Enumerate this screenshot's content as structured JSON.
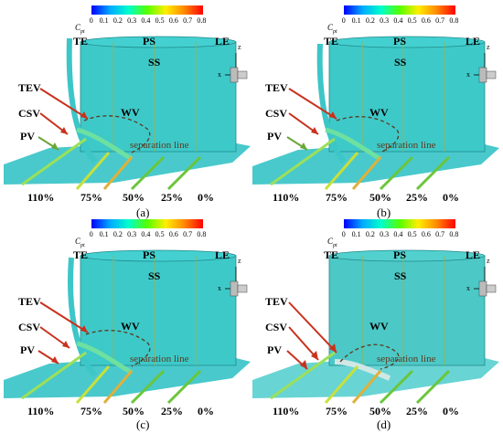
{
  "colorbar": {
    "symbol": "C",
    "symbol_sub": "pt",
    "ticks": [
      "0",
      "0.1",
      "0.2",
      "0.3",
      "0.4",
      "0.5",
      "0.6",
      "0.7",
      "0.8"
    ],
    "colors": [
      "#0000ff",
      "#00aaff",
      "#00ffcc",
      "#55ff00",
      "#ffee00",
      "#ff8800",
      "#ff0000"
    ]
  },
  "labels": {
    "te": "TE",
    "ps": "PS",
    "le": "LE",
    "ss": "SS",
    "wv": "WV",
    "tev": "TEV",
    "csv": "CSV",
    "pv": "PV",
    "separation": "separation line"
  },
  "spans": [
    "110%",
    "75%",
    "50%",
    "25%",
    "0%"
  ],
  "axes": {
    "z": "z",
    "x": "x"
  },
  "panels": [
    {
      "caption": "(a)"
    },
    {
      "caption": "(b)"
    },
    {
      "caption": "(c)"
    },
    {
      "caption": "(d)"
    }
  ],
  "colors": {
    "blade": "#3ec9c9",
    "blade_dark": "#2aa3a6",
    "surface": "#35c3c6",
    "arrow": "#c8321e",
    "pv_arrow": "#6aa63a",
    "sep_line": "#5a3a1e"
  }
}
